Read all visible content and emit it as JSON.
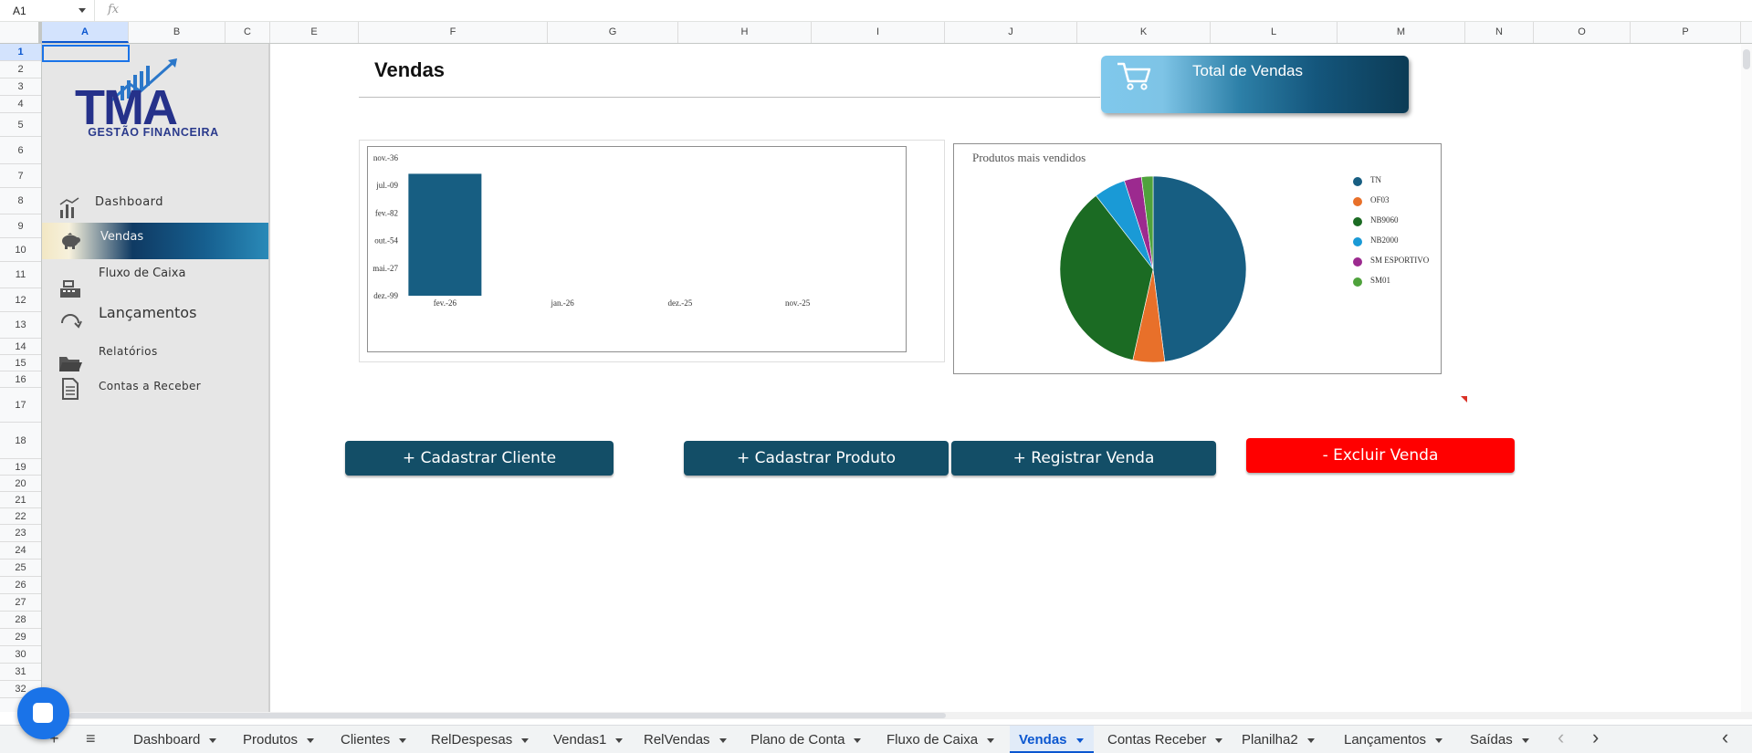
{
  "formula_bar": {
    "cell_ref": "A1",
    "fx_symbol": "fx"
  },
  "columns": [
    "A",
    "B",
    "C",
    "E",
    "F",
    "G",
    "H",
    "I",
    "J",
    "K",
    "L",
    "M",
    "N",
    "O",
    "P"
  ],
  "rows": [
    "1",
    "2",
    "3",
    "4",
    "5",
    "6",
    "7",
    "8",
    "9",
    "10",
    "11",
    "12",
    "13",
    "14",
    "15",
    "16",
    "17",
    "18",
    "19",
    "20",
    "21",
    "22",
    "23",
    "24",
    "25",
    "26",
    "27",
    "28",
    "29",
    "30",
    "31",
    "32"
  ],
  "logo": {
    "letters": "TMA",
    "subtitle": "GESTÃO FINANCEIRA"
  },
  "sidebar": {
    "items": [
      {
        "label": "Dashboard",
        "icon": "bar-chart-icon"
      },
      {
        "label": "Vendas",
        "icon": "piggy-bank-icon"
      },
      {
        "label": "Fluxo de Caixa",
        "icon": "cash-register-icon"
      },
      {
        "label": "Lançamentos",
        "icon": "refresh-icon"
      },
      {
        "label": "Relatórios",
        "icon": "folder-icon"
      },
      {
        "label": "Contas a Receber",
        "icon": "document-icon"
      }
    ]
  },
  "page": {
    "title": "Vendas"
  },
  "total_card": {
    "label": "Total de Vendas",
    "icon": "cart-icon"
  },
  "chart_data": [
    {
      "type": "bar",
      "categories": [
        "fev.-26",
        "jan.-26",
        "dez.-25",
        "nov.-25"
      ],
      "values": [
        44235,
        0,
        0,
        0
      ],
      "ytick_labels": [
        "dez.-99",
        "mai.-27",
        "out.-54",
        "fev.-82",
        "jul.-09",
        "nov.-36"
      ],
      "yticks": [
        0,
        10000,
        20000,
        30000,
        40000,
        50000
      ],
      "ylim": [
        0,
        50000
      ],
      "title": "",
      "color": "#175e82"
    },
    {
      "type": "pie",
      "title": "Produtos mais vendidos",
      "labels": [
        "TN",
        "OF03",
        "NB9060",
        "NB2000",
        "SM ESPORTIVO",
        "SM01"
      ],
      "values": [
        48,
        5.5,
        36,
        5.5,
        3,
        2
      ],
      "colors": [
        "#175e82",
        "#e8702a",
        "#1b6b23",
        "#1a9ad6",
        "#9c2a8f",
        "#4fa23c"
      ]
    }
  ],
  "buttons": {
    "add_client": "+ Cadastrar Cliente",
    "add_product": "+ Cadastrar Produto",
    "register_sale": "+ Registrar Venda",
    "delete_sale": "- Excluir Venda"
  },
  "tabs": [
    "Dashboard",
    "Produtos",
    "Clientes",
    "RelDespesas",
    "Vendas1",
    "RelVendas",
    "Plano de Conta",
    "Fluxo de Caixa",
    "Vendas",
    "Contas Receber",
    "Planilha2",
    "Lançamentos",
    "Saídas"
  ],
  "active_tab": "Vendas",
  "tab_controls": {
    "add": "+",
    "all_sheets": "≡",
    "prev": "‹",
    "next": "›",
    "collapse": "‹"
  }
}
